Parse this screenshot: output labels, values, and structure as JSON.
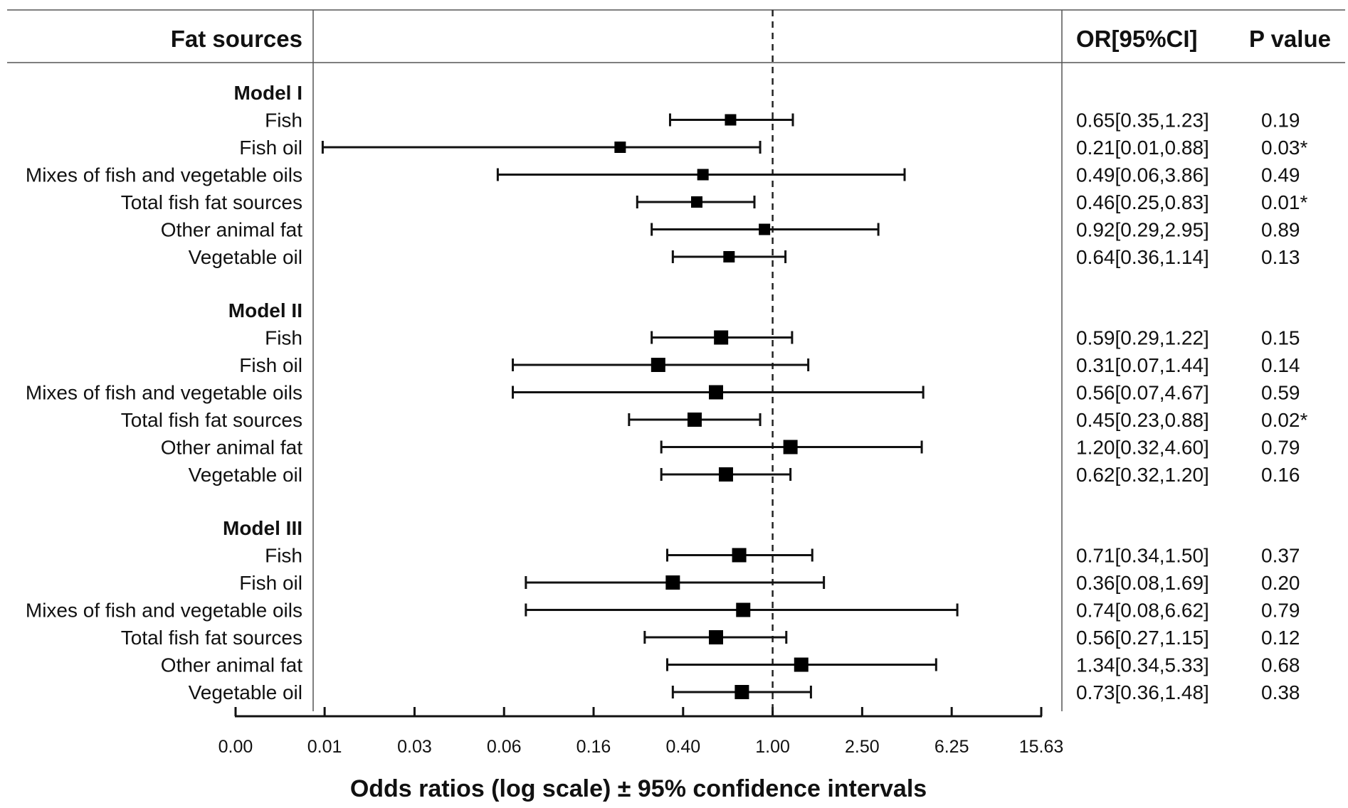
{
  "header": {
    "left": "Fat sources",
    "or": "OR[95%CI]",
    "p": "P value"
  },
  "chart_data": {
    "type": "forest",
    "xlabel": "Odds ratios (log scale) ± 95% confidence intervals",
    "scale": "log",
    "reference_line": 1.0,
    "xticks": [
      0.0041,
      0.0102,
      0.0256,
      0.064,
      0.16,
      0.4,
      1.0,
      2.5,
      6.25,
      15.63
    ],
    "xtick_labels": [
      "0.00",
      "0.01",
      "0.03",
      "0.06",
      "0.16",
      "0.40",
      "1.00",
      "2.50",
      "6.25",
      "15.63"
    ],
    "groups": [
      {
        "name": "Model I",
        "rows": [
          {
            "label": "Fish",
            "or": 0.65,
            "lo": 0.35,
            "hi": 1.23,
            "ci_text": "0.65[0.35,1.23]",
            "p": "0.19"
          },
          {
            "label": "Fish oil",
            "or": 0.21,
            "lo": 0.01,
            "hi": 0.88,
            "ci_text": "0.21[0.01,0.88]",
            "p": "0.03*"
          },
          {
            "label": "Mixes of fish and vegetable oils",
            "or": 0.49,
            "lo": 0.06,
            "hi": 3.86,
            "ci_text": "0.49[0.06,3.86]",
            "p": "0.49"
          },
          {
            "label": "Total fish fat sources",
            "or": 0.46,
            "lo": 0.25,
            "hi": 0.83,
            "ci_text": "0.46[0.25,0.83]",
            "p": "0.01*"
          },
          {
            "label": "Other animal fat",
            "or": 0.92,
            "lo": 0.29,
            "hi": 2.95,
            "ci_text": "0.92[0.29,2.95]",
            "p": "0.89"
          },
          {
            "label": "Vegetable oil",
            "or": 0.64,
            "lo": 0.36,
            "hi": 1.14,
            "ci_text": "0.64[0.36,1.14]",
            "p": "0.13"
          }
        ]
      },
      {
        "name": "Model II",
        "rows": [
          {
            "label": "Fish",
            "or": 0.59,
            "lo": 0.29,
            "hi": 1.22,
            "ci_text": "0.59[0.29,1.22]",
            "p": "0.15"
          },
          {
            "label": "Fish oil",
            "or": 0.31,
            "lo": 0.07,
            "hi": 1.44,
            "ci_text": "0.31[0.07,1.44]",
            "p": "0.14"
          },
          {
            "label": "Mixes of fish and vegetable oils",
            "or": 0.56,
            "lo": 0.07,
            "hi": 4.67,
            "ci_text": "0.56[0.07,4.67]",
            "p": "0.59"
          },
          {
            "label": "Total fish fat sources",
            "or": 0.45,
            "lo": 0.23,
            "hi": 0.88,
            "ci_text": "0.45[0.23,0.88]",
            "p": "0.02*"
          },
          {
            "label": "Other animal fat",
            "or": 1.2,
            "lo": 0.32,
            "hi": 4.6,
            "ci_text": "1.20[0.32,4.60]",
            "p": "0.79"
          },
          {
            "label": "Vegetable oil",
            "or": 0.62,
            "lo": 0.32,
            "hi": 1.2,
            "ci_text": "0.62[0.32,1.20]",
            "p": "0.16"
          }
        ]
      },
      {
        "name": "Model III",
        "rows": [
          {
            "label": "Fish",
            "or": 0.71,
            "lo": 0.34,
            "hi": 1.5,
            "ci_text": "0.71[0.34,1.50]",
            "p": "0.37"
          },
          {
            "label": "Fish oil",
            "or": 0.36,
            "lo": 0.08,
            "hi": 1.69,
            "ci_text": "0.36[0.08,1.69]",
            "p": "0.20"
          },
          {
            "label": "Mixes of fish and vegetable oils",
            "or": 0.74,
            "lo": 0.08,
            "hi": 6.62,
            "ci_text": "0.74[0.08,6.62]",
            "p": "0.79"
          },
          {
            "label": "Total fish fat sources",
            "or": 0.56,
            "lo": 0.27,
            "hi": 1.15,
            "ci_text": "0.56[0.27,1.15]",
            "p": "0.12"
          },
          {
            "label": "Other animal fat",
            "or": 1.34,
            "lo": 0.34,
            "hi": 5.33,
            "ci_text": "1.34[0.34,5.33]",
            "p": "0.68"
          },
          {
            "label": "Vegetable oil",
            "or": 0.73,
            "lo": 0.36,
            "hi": 1.48,
            "ci_text": "0.73[0.36,1.48]",
            "p": "0.38"
          }
        ]
      }
    ]
  }
}
